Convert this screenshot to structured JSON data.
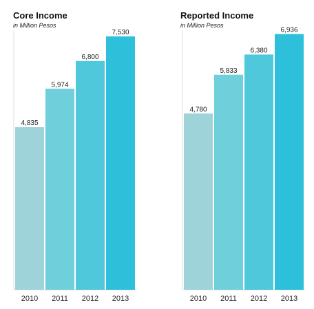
{
  "chart_data": [
    {
      "type": "bar",
      "title": "Core Income",
      "subtitle": "in Million Pesos",
      "categories": [
        "2010",
        "2011",
        "2012",
        "2013"
      ],
      "values": [
        4835,
        5974,
        6800,
        7530
      ],
      "value_labels": [
        "4,835",
        "5,974",
        "6,800",
        "7,530"
      ],
      "ylim": [
        0,
        8000
      ],
      "grid": false,
      "legend": "none"
    },
    {
      "type": "bar",
      "title": "Reported Income",
      "subtitle": "in Million Pesos",
      "categories": [
        "2010",
        "2011",
        "2012",
        "2013"
      ],
      "values": [
        4780,
        5833,
        6380,
        6936
      ],
      "value_labels": [
        "4,780",
        "5,833",
        "6,380",
        "6,936"
      ],
      "ylim": [
        0,
        7300
      ],
      "grid": false,
      "legend": "none"
    }
  ],
  "colors": {
    "bars": [
      "#9fd3da",
      "#6fcfdb",
      "#4ec8da",
      "#2ec0db"
    ],
    "axis": "#dddddd"
  }
}
